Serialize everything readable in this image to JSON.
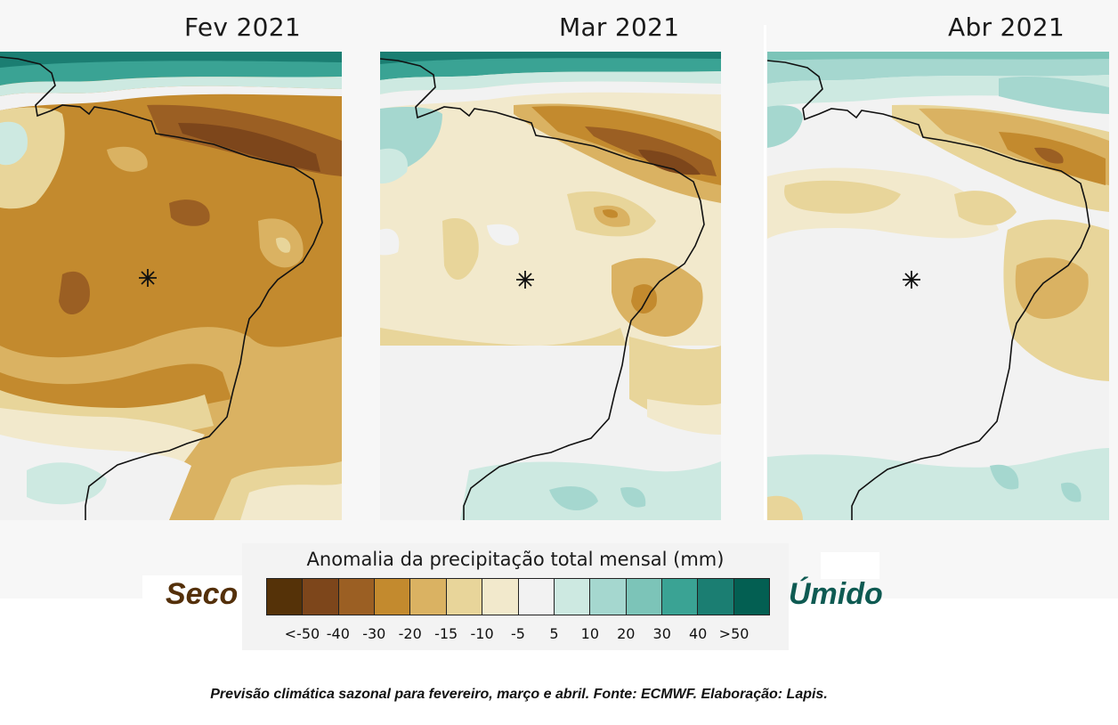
{
  "panels": [
    {
      "title": "Fev 2021",
      "background": "#c58a33"
    },
    {
      "title": "Mar 2021",
      "background": "#f1ecd6"
    },
    {
      "title": "Abr 2021",
      "background": "#f2f2f2"
    }
  ],
  "legend": {
    "title": "Anomalia da precipitação total mensal (mm)",
    "dry_label": "Seco",
    "wet_label": "Úmido",
    "colors": [
      "#553208",
      "#7d461b",
      "#9b5f23",
      "#c38a2e",
      "#dab262",
      "#e8d59a",
      "#f2e9cc",
      "#f2f2f2",
      "#cde9e1",
      "#a5d7cf",
      "#7cc4b8",
      "#3aa394",
      "#1b7e72",
      "#035f52"
    ],
    "tick_labels": [
      "<-50",
      "-40",
      "-30",
      "-20",
      "-15",
      "-10",
      "-5",
      "5",
      "10",
      "20",
      "30",
      "40",
      ">50"
    ]
  },
  "caption": "Previsão climática sazonal para fevereiro, março e abril.  Fonte: ECMWF. Elaboração: Lapis."
}
